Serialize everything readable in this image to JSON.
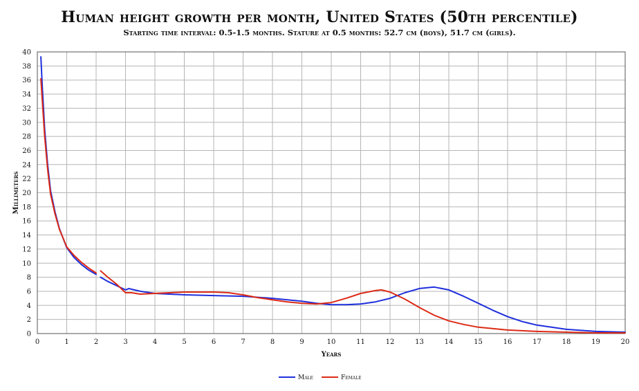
{
  "chart_data": {
    "type": "line",
    "title": "Human height growth per month, United States (50th percentile)",
    "subtitle": "Starting time interval: 0.5-1.5 months. Stature at 0.5 months: 52.7 cm (boys), 51.7 cm (girls).",
    "xlabel": "Years",
    "ylabel": "Millimeters",
    "xlim": [
      0,
      20
    ],
    "ylim": [
      0,
      40
    ],
    "x_ticks": [
      0,
      1,
      2,
      3,
      4,
      5,
      6,
      7,
      8,
      9,
      10,
      11,
      12,
      13,
      14,
      15,
      16,
      17,
      18,
      19,
      20
    ],
    "y_ticks": [
      0,
      2,
      4,
      6,
      8,
      10,
      12,
      14,
      16,
      18,
      20,
      22,
      24,
      26,
      28,
      30,
      32,
      34,
      36,
      38,
      40
    ],
    "grid": true,
    "legend_position": "bottom-center",
    "series": [
      {
        "name": "Male",
        "color": "#1f2fdc",
        "segments": [
          [
            [
              0.12,
              39.3
            ],
            [
              0.17,
              35
            ],
            [
              0.25,
              29
            ],
            [
              0.35,
              24
            ],
            [
              0.45,
              20.3
            ],
            [
              0.6,
              17.3
            ],
            [
              0.75,
              14.9
            ],
            [
              1.0,
              12.2
            ],
            [
              1.25,
              10.8
            ],
            [
              1.5,
              9.8
            ],
            [
              1.75,
              9.0
            ],
            [
              2.0,
              8.4
            ]
          ],
          [
            [
              2.15,
              8.0
            ],
            [
              2.4,
              7.4
            ],
            [
              2.7,
              6.8
            ],
            [
              3.0,
              6.2
            ],
            [
              3.12,
              6.4
            ],
            [
              3.2,
              6.3
            ],
            [
              3.5,
              6.0
            ],
            [
              4.0,
              5.7
            ],
            [
              5.0,
              5.5
            ],
            [
              6.0,
              5.4
            ],
            [
              7.0,
              5.3
            ],
            [
              8.0,
              5.0
            ],
            [
              9.0,
              4.6
            ],
            [
              9.5,
              4.3
            ],
            [
              10.0,
              4.1
            ],
            [
              10.5,
              4.1
            ],
            [
              11.0,
              4.2
            ],
            [
              11.5,
              4.5
            ],
            [
              12.0,
              5.0
            ],
            [
              12.5,
              5.8
            ],
            [
              13.0,
              6.4
            ],
            [
              13.5,
              6.6
            ],
            [
              14.0,
              6.2
            ],
            [
              14.5,
              5.3
            ],
            [
              15.0,
              4.3
            ],
            [
              15.5,
              3.3
            ],
            [
              16.0,
              2.4
            ],
            [
              16.5,
              1.7
            ],
            [
              17.0,
              1.2
            ],
            [
              18.0,
              0.6
            ],
            [
              19.0,
              0.3
            ],
            [
              20.0,
              0.2
            ]
          ]
        ]
      },
      {
        "name": "Female",
        "color": "#dc2a16",
        "segments": [
          [
            [
              0.12,
              36.2
            ],
            [
              0.17,
              33
            ],
            [
              0.25,
              28
            ],
            [
              0.35,
              23.3
            ],
            [
              0.45,
              19.8
            ],
            [
              0.6,
              17
            ],
            [
              0.75,
              14.8
            ],
            [
              1.0,
              12.3
            ],
            [
              1.25,
              11.1
            ],
            [
              1.5,
              10.1
            ],
            [
              1.75,
              9.3
            ],
            [
              2.0,
              8.6
            ]
          ],
          [
            [
              2.15,
              8.9
            ],
            [
              2.4,
              8.0
            ],
            [
              2.7,
              7.0
            ],
            [
              3.0,
              5.8
            ],
            [
              3.2,
              5.8
            ],
            [
              3.5,
              5.6
            ],
            [
              4.0,
              5.7
            ],
            [
              4.5,
              5.8
            ],
            [
              5.0,
              5.9
            ],
            [
              5.5,
              5.9
            ],
            [
              6.0,
              5.9
            ],
            [
              6.5,
              5.8
            ],
            [
              7.0,
              5.5
            ],
            [
              7.5,
              5.1
            ],
            [
              8.0,
              4.8
            ],
            [
              8.5,
              4.5
            ],
            [
              9.0,
              4.3
            ],
            [
              9.5,
              4.2
            ],
            [
              10.0,
              4.4
            ],
            [
              10.5,
              5.0
            ],
            [
              11.0,
              5.7
            ],
            [
              11.5,
              6.1
            ],
            [
              11.7,
              6.2
            ],
            [
              12.0,
              5.9
            ],
            [
              12.5,
              4.9
            ],
            [
              13.0,
              3.7
            ],
            [
              13.5,
              2.6
            ],
            [
              14.0,
              1.8
            ],
            [
              14.5,
              1.3
            ],
            [
              15.0,
              0.9
            ],
            [
              16.0,
              0.5
            ],
            [
              17.0,
              0.3
            ],
            [
              18.0,
              0.2
            ],
            [
              19.0,
              0.1
            ],
            [
              20.0,
              0.1
            ]
          ]
        ]
      }
    ]
  }
}
